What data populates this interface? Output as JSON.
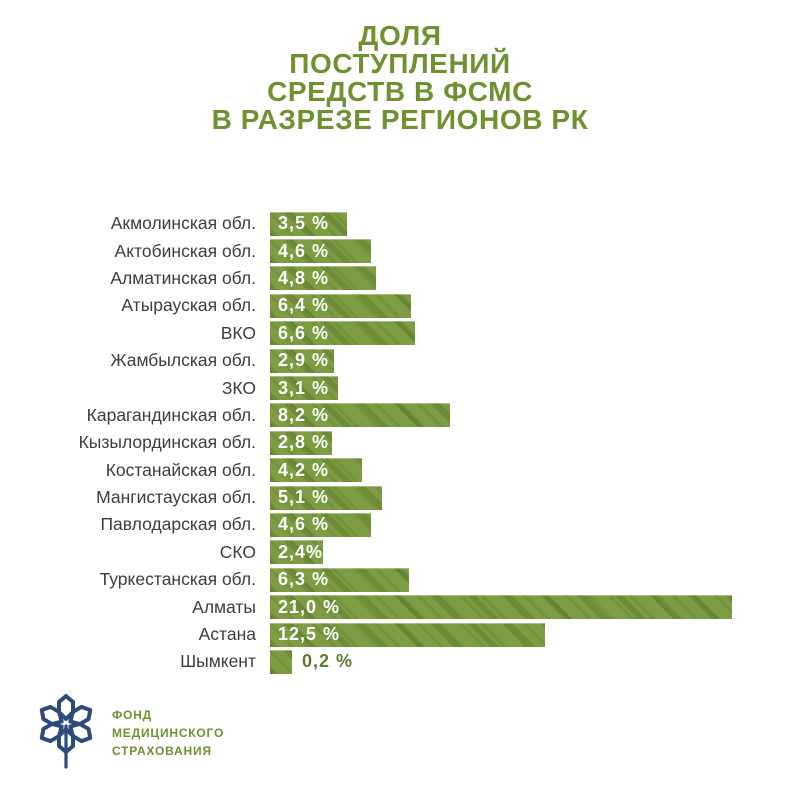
{
  "page": {
    "background": "#ffffff"
  },
  "title": "ДОЛЯ\nПОСТУПЛЕНИЙ\nСРЕДСТВ В ФСМС\nВ РАЗРЕЗЕ РЕГИОНОВ РК",
  "title_color": "#6e9230",
  "chart_data": {
    "type": "bar",
    "orientation": "horizontal",
    "title": "ДОЛЯ ПОСТУПЛЕНИЙ СРЕДСТВ В ФСМС В РАЗРЕЗЕ РЕГИОНОВ РК",
    "unit": "%",
    "xlim": [
      0,
      21.5
    ],
    "grid": false,
    "legend": false,
    "bar_color": "#7d9d42",
    "bar_texture_color": "#5e7c30",
    "value_text_color_inside": "#ffffff",
    "value_text_color_outside": "#5e7c2b",
    "category_label_color": "#3d3d3d",
    "categories": [
      "Акмолинская обл.",
      "Актобинская обл.",
      "Алматинская обл.",
      "Атырауская обл.",
      "ВКО",
      "Жамбылская обл.",
      "ЗКО",
      "Карагандинская обл.",
      "Кызылординская обл.",
      "Костанайская обл.",
      "Мангистауская обл.",
      "Павлодарская обл.",
      "СКО",
      "Туркестанская обл.",
      "Алматы",
      "Астана",
      "Шымкент"
    ],
    "values": [
      3.5,
      4.6,
      4.8,
      6.4,
      6.6,
      2.9,
      3.1,
      8.2,
      2.8,
      4.2,
      5.1,
      4.6,
      2.4,
      6.3,
      21.0,
      12.5,
      0.2
    ],
    "value_labels": [
      "3,5 %",
      "4,6 %",
      "4,8 %",
      "6,4 %",
      "6,6 %",
      "2,9 %",
      "3,1 %",
      "8,2 %",
      "2,8 %",
      "4,2 %",
      "5,1 %",
      "4,6 %",
      "2,4%",
      "6,3 %",
      "21,0 %",
      "12,5 %",
      "0,2 %"
    ]
  },
  "logo": {
    "text": "ФОНД\nМЕДИЦИНСКОГО\nСТРАХОВАНИЯ",
    "text_color": "#6e9230",
    "icon": "snowflake-icon",
    "icon_color": "#2c4b7c"
  }
}
